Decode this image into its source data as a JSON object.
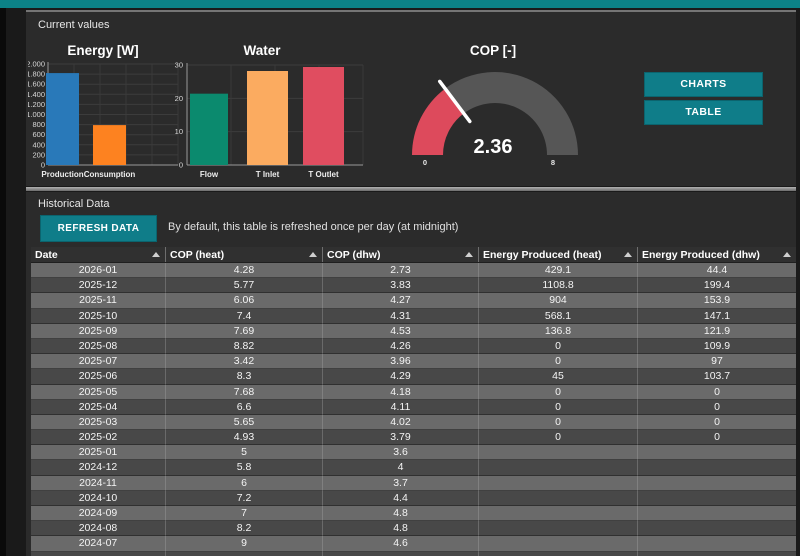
{
  "current_values": {
    "panel_title": "Current values",
    "buttons": [
      {
        "label": "CHARTS"
      },
      {
        "label": "TABLE"
      }
    ]
  },
  "chart_data": [
    {
      "type": "bar",
      "title": "Energy [W]",
      "categories": [
        "Production",
        "Consumption"
      ],
      "values": [
        1820,
        790
      ],
      "ylim": [
        0,
        2000
      ],
      "ytick_step": 200,
      "yticks": [
        "0",
        "200",
        "400",
        "600",
        "800",
        "1.000",
        "1.200",
        "1.400",
        "1.600",
        "1.800",
        "2.000"
      ],
      "bar_colors": [
        "#2979b9",
        "#fd8220"
      ],
      "grid": true,
      "legend": false
    },
    {
      "type": "bar",
      "title": "Water",
      "categories": [
        "Flow",
        "T Inlet",
        "T Outlet"
      ],
      "values": [
        21.4,
        28.2,
        29.4
      ],
      "ylim": [
        0,
        30
      ],
      "ytick_step": 10,
      "yticks": [
        "0",
        "10",
        "20",
        "30"
      ],
      "bar_colors": [
        "#0b8a6e",
        "#fbab60",
        "#e04d60"
      ],
      "grid": true,
      "legend": false
    },
    {
      "type": "gauge",
      "title": "COP [-]",
      "value": 2.36,
      "display_value": "2.36",
      "min": 0,
      "max": 8,
      "min_label": "0",
      "max_label": "8",
      "filled_color": "#dd4a5c",
      "track_color": "#565656",
      "needle_color": "#ffffff"
    }
  ],
  "historical": {
    "panel_title": "Historical Data",
    "refresh_button_label": "REFRESH DATA",
    "note": "By default, this table is refreshed once per day (at midnight)",
    "table": {
      "columns": [
        "Date",
        "COP (heat)",
        "COP (dhw)",
        "Energy Produced (heat)",
        "Energy Produced (dhw)"
      ],
      "rows": [
        [
          "2026-01",
          "4.28",
          "2.73",
          "429.1",
          "44.4"
        ],
        [
          "2025-12",
          "5.77",
          "3.83",
          "1108.8",
          "199.4"
        ],
        [
          "2025-11",
          "6.06",
          "4.27",
          "904",
          "153.9"
        ],
        [
          "2025-10",
          "7.4",
          "4.31",
          "568.1",
          "147.1"
        ],
        [
          "2025-09",
          "7.69",
          "4.53",
          "136.8",
          "121.9"
        ],
        [
          "2025-08",
          "8.82",
          "4.26",
          "0",
          "109.9"
        ],
        [
          "2025-07",
          "3.42",
          "3.96",
          "0",
          "97"
        ],
        [
          "2025-06",
          "8.3",
          "4.29",
          "45",
          "103.7"
        ],
        [
          "2025-05",
          "7.68",
          "4.18",
          "0",
          "0"
        ],
        [
          "2025-04",
          "6.6",
          "4.11",
          "0",
          "0"
        ],
        [
          "2025-03",
          "5.65",
          "4.02",
          "0",
          "0"
        ],
        [
          "2025-02",
          "4.93",
          "3.79",
          "0",
          "0"
        ],
        [
          "2025-01",
          "5",
          "3.6",
          "",
          ""
        ],
        [
          "2024-12",
          "5.8",
          "4",
          "",
          ""
        ],
        [
          "2024-11",
          "6",
          "3.7",
          "",
          ""
        ],
        [
          "2024-10",
          "7.2",
          "4.4",
          "",
          ""
        ],
        [
          "2024-09",
          "7",
          "4.8",
          "",
          ""
        ],
        [
          "2024-08",
          "8.2",
          "4.8",
          "",
          ""
        ],
        [
          "2024-07",
          "9",
          "4.6",
          "",
          ""
        ]
      ]
    }
  },
  "colors": {
    "accent_teal": "#0f7d89",
    "topbar_teal": "#0c8287",
    "panel_bg": "#2b2b2b",
    "row_light": "#6a6a6a",
    "row_dark": "#484848"
  }
}
